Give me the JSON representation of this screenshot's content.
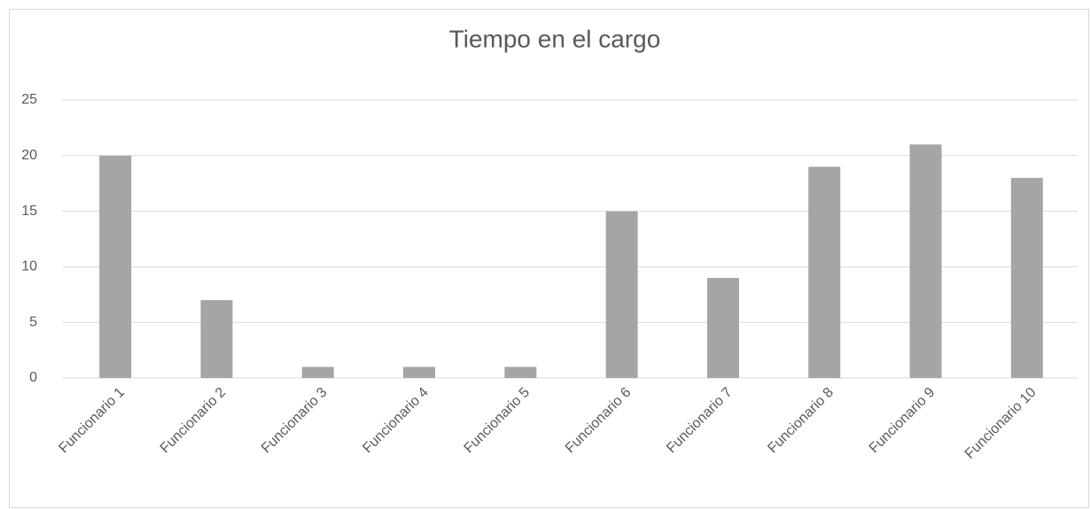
{
  "chart_data": {
    "type": "bar",
    "title": "Tiempo en el cargo",
    "categories": [
      "Funcionario 1",
      "Funcionario 2",
      "Funcionario 3",
      "Funcionario 4",
      "Funcionario 5",
      "Funcionario 6",
      "Funcionario 7",
      "Funcionario 8",
      "Funcionario 9",
      "Funcionario 10"
    ],
    "values": [
      20,
      7,
      1,
      1,
      1,
      15,
      9,
      19,
      21,
      18
    ],
    "color": "#a5a5a5",
    "ylim": [
      0,
      25
    ],
    "yticks": [
      0,
      5,
      10,
      15,
      20,
      25
    ],
    "grid": true
  }
}
